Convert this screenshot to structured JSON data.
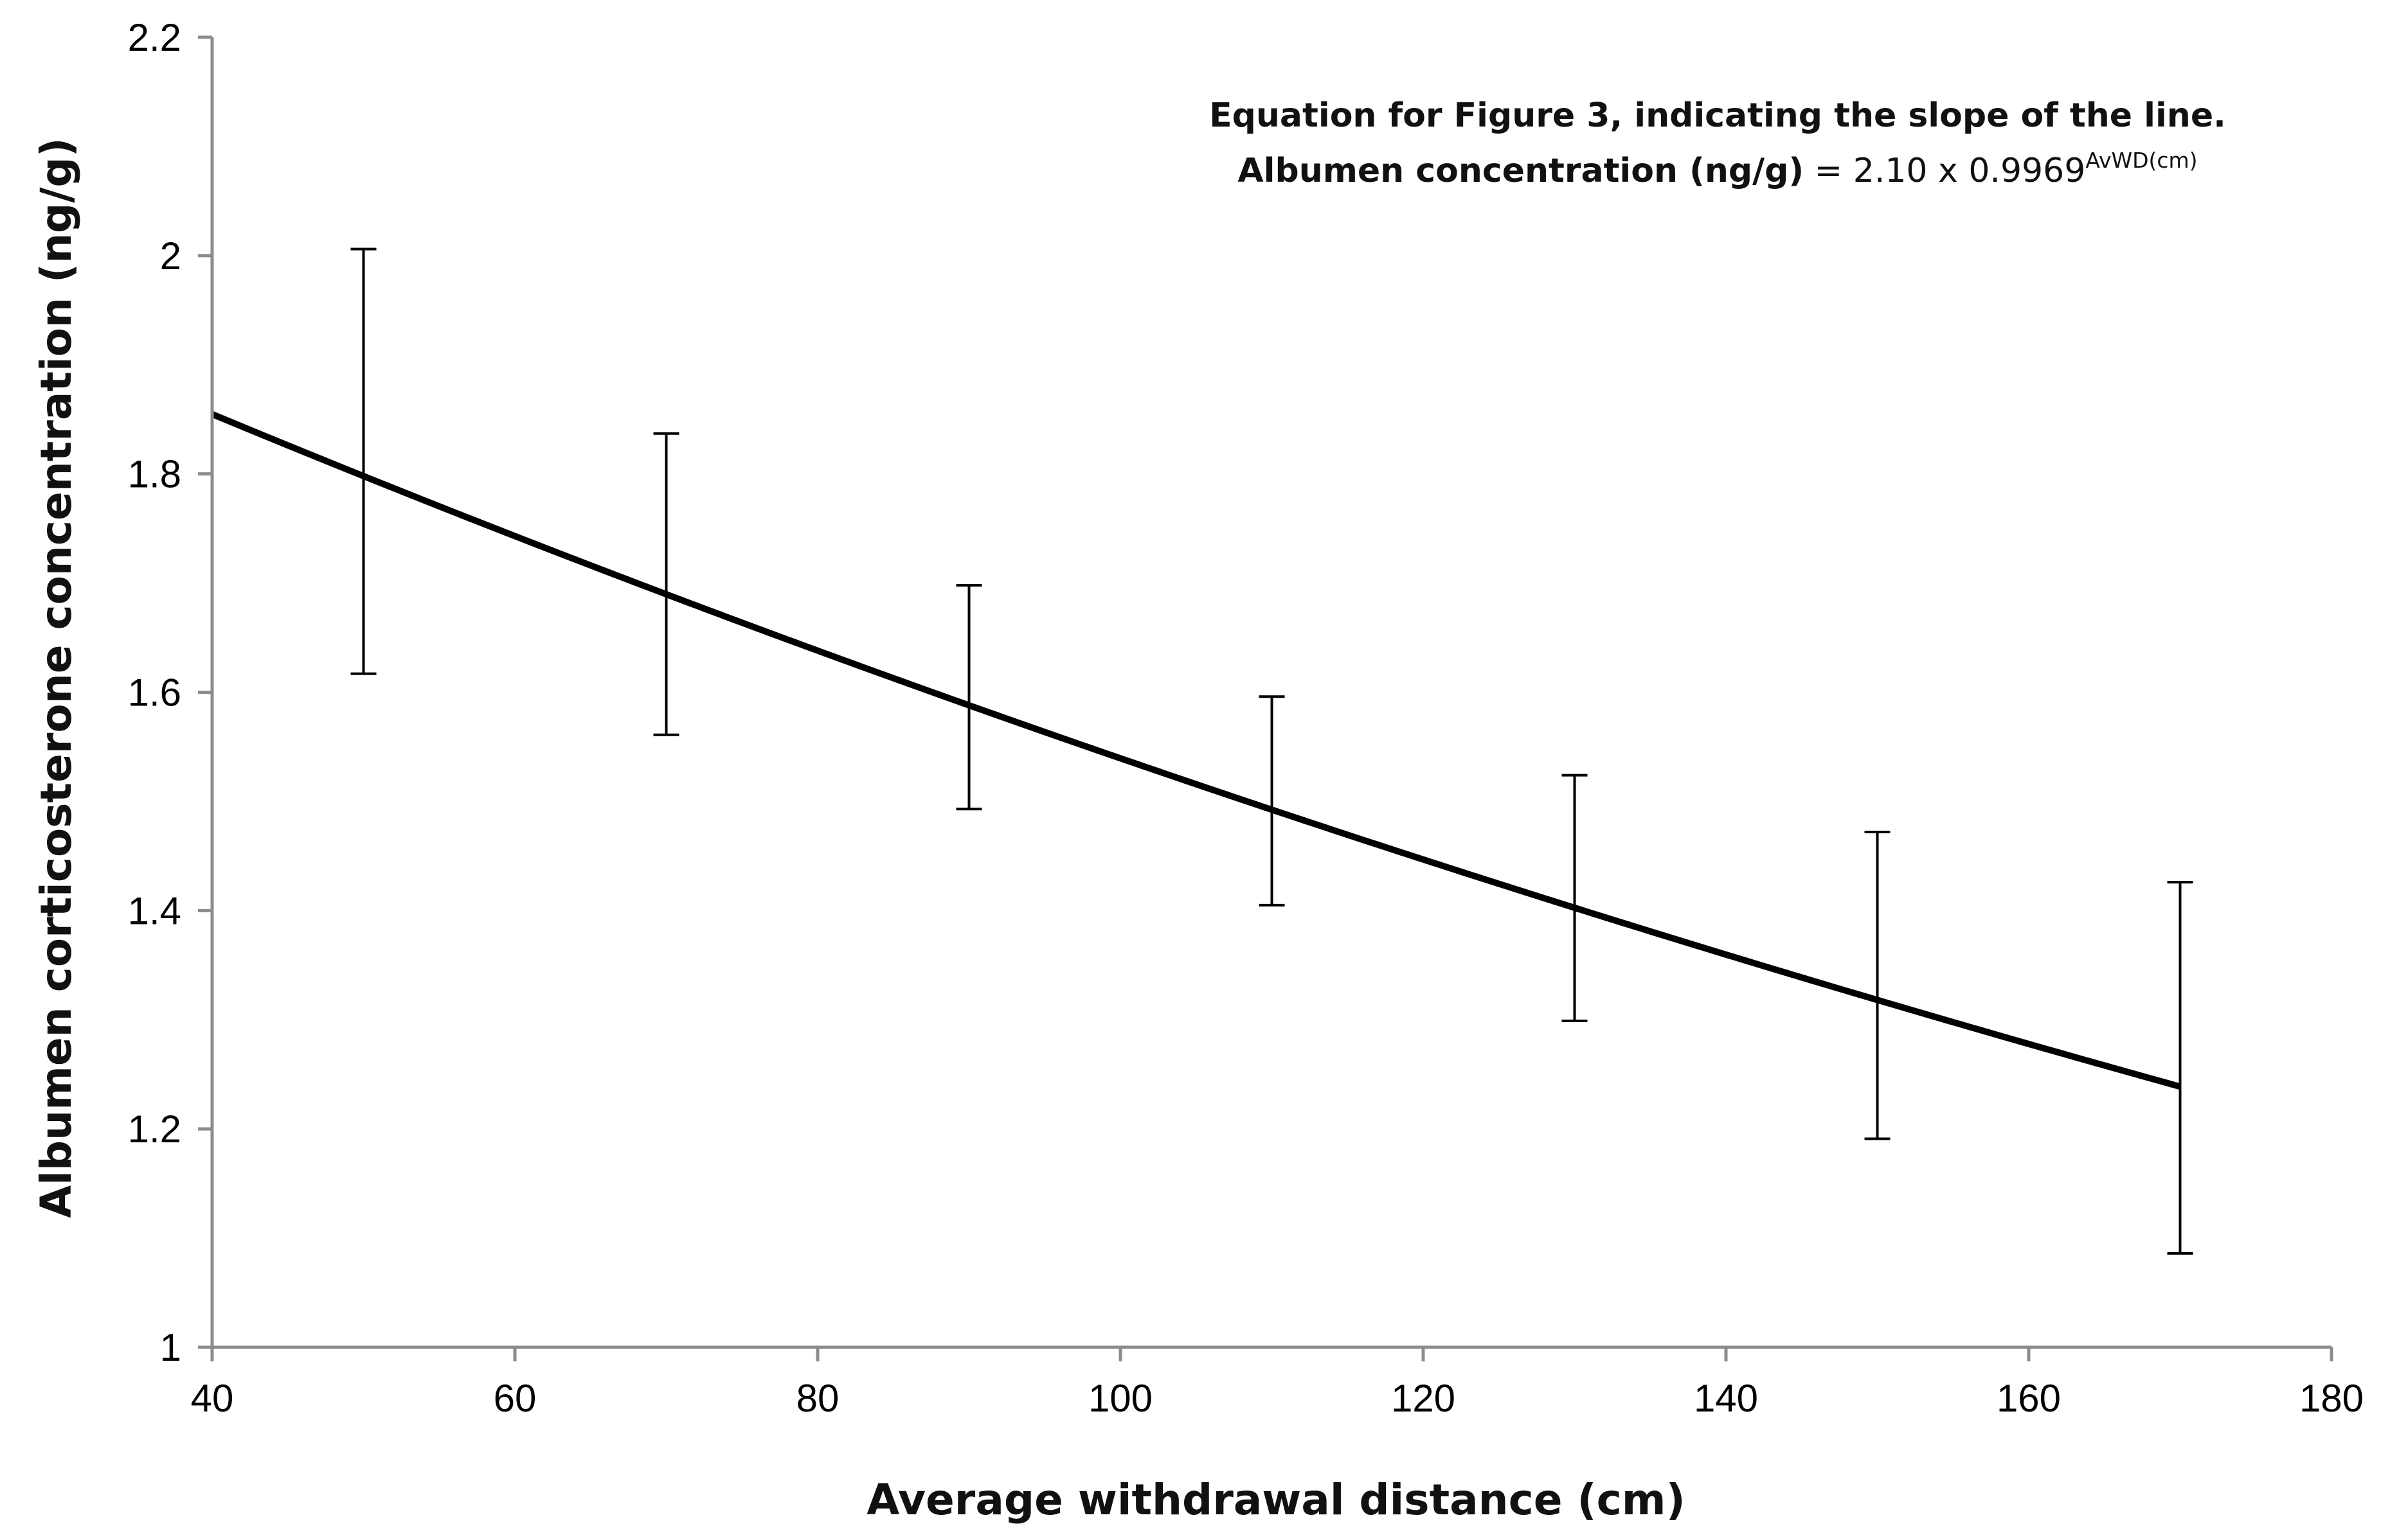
{
  "chart_data": {
    "type": "line",
    "title": "",
    "xlabel": "Average withdrawal distance (cm)",
    "ylabel": "Albumen corticosterone concentration (ng/g)",
    "xlim": [
      40,
      180
    ],
    "ylim": [
      1,
      2.2
    ],
    "x_ticks": [
      "40",
      "60",
      "80",
      "100",
      "120",
      "140",
      "160",
      "180"
    ],
    "y_ticks": [
      "1",
      "1.2",
      "1.4",
      "1.6",
      "1.8",
      "2",
      "2.2"
    ],
    "grid": false,
    "annotation": {
      "line1": "Equation for Figure 3, indicating the slope of the line.",
      "line2_bold": "Albumen concentration (ng/g)",
      "line2_rest": " = 2.10 x 0.9969",
      "superscript": "AvWD(cm)"
    },
    "model": {
      "a": 2.1,
      "b": 0.9969,
      "x_start": 40,
      "x_end": 170
    },
    "error_bars": [
      {
        "x": 50,
        "low": 1.617,
        "high": 2.006
      },
      {
        "x": 70,
        "low": 1.561,
        "high": 1.837
      },
      {
        "x": 90,
        "low": 1.493,
        "high": 1.698
      },
      {
        "x": 110,
        "low": 1.405,
        "high": 1.596
      },
      {
        "x": 130,
        "low": 1.299,
        "high": 1.524
      },
      {
        "x": 150,
        "low": 1.191,
        "high": 1.472
      },
      {
        "x": 170,
        "low": 1.086,
        "high": 1.426
      }
    ],
    "colors": {
      "line": "#000000",
      "axis": "#8c8c8c",
      "error_bar": "#000000"
    }
  }
}
